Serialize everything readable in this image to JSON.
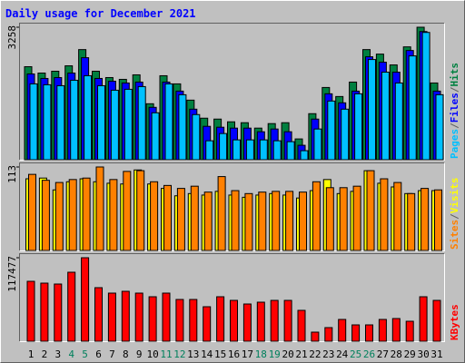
{
  "legend_separator": "/",
  "chart_data": [
    {
      "type": "bar",
      "title": "Daily usage for December 2021",
      "ylim": [
        0,
        3258
      ],
      "yticks": [
        3258
      ],
      "series": [
        {
          "name": "Hits",
          "color": "#008040",
          "values": [
            2287,
            2131,
            2176,
            2309,
            2708,
            2176,
            2020,
            1976,
            2087,
            1376,
            2065,
            1865,
            1465,
            1021,
            999,
            932,
            910,
            777,
            888,
            910,
            511,
            1132,
            1776,
            1554,
            1909,
            2708,
            2597,
            2331,
            2775,
            3258,
            1887
          ]
        },
        {
          "name": "Files",
          "color": "#0000ff",
          "values": [
            2109,
            1998,
            2020,
            2131,
            2509,
            1998,
            1931,
            1887,
            1909,
            1288,
            1909,
            1687,
            1243,
            821,
            799,
            777,
            777,
            688,
            755,
            688,
            355,
            999,
            1621,
            1399,
            1687,
            2531,
            2398,
            2153,
            2686,
            3152,
            1687
          ]
        },
        {
          "name": "Pages",
          "color": "#00c0ff",
          "values": [
            1865,
            1843,
            1820,
            1954,
            2065,
            1820,
            1709,
            1732,
            1798,
            1154,
            1865,
            1598,
            1110,
            466,
            644,
            488,
            488,
            488,
            466,
            444,
            222,
            755,
            1443,
            1243,
            1621,
            2464,
            2153,
            1887,
            2553,
            3130,
            1598
          ]
        }
      ]
    },
    {
      "type": "bar",
      "ylim": [
        0,
        113
      ],
      "yticks": [
        113
      ],
      "series": [
        {
          "name": "Visits",
          "color": "#ffff00",
          "values": [
            97,
            98,
            82,
            93,
            97,
            93,
            91,
            90,
            109,
            90,
            84,
            74,
            77,
            75,
            80,
            75,
            72,
            75,
            77,
            75,
            71,
            81,
            96,
            77,
            80,
            108,
            91,
            86,
            77,
            81,
            81
          ]
        },
        {
          "name": "Sites",
          "color": "#ff8000",
          "values": [
            103,
            95,
            92,
            96,
            98,
            113,
            96,
            107,
            108,
            93,
            88,
            84,
            87,
            79,
            100,
            81,
            77,
            79,
            80,
            80,
            79,
            93,
            85,
            85,
            87,
            108,
            97,
            92,
            77,
            84,
            82
          ]
        }
      ]
    },
    {
      "type": "bar",
      "ylim": [
        0,
        117477
      ],
      "yticks": [
        117477
      ],
      "categories": [
        "1",
        "2",
        "3",
        "4",
        "5",
        "6",
        "7",
        "8",
        "9",
        "10",
        "11",
        "12",
        "13",
        "14",
        "15",
        "16",
        "17",
        "18",
        "19",
        "20",
        "21",
        "22",
        "23",
        "24",
        "25",
        "26",
        "27",
        "28",
        "29",
        "30",
        "31"
      ],
      "category_colors": [
        "#000000",
        "#000000",
        "#000000",
        "#00805c",
        "#00805c",
        "#000000",
        "#000000",
        "#000000",
        "#000000",
        "#000000",
        "#00805c",
        "#00805c",
        "#000000",
        "#000000",
        "#000000",
        "#000000",
        "#000000",
        "#00805c",
        "#00805c",
        "#000000",
        "#000000",
        "#000000",
        "#000000",
        "#000000",
        "#00805c",
        "#00805c",
        "#000000",
        "#000000",
        "#000000",
        "#000000",
        "#000000"
      ],
      "series": [
        {
          "name": "KBytes",
          "color": "#ff0000",
          "values": [
            84282,
            81728,
            80451,
            97052,
            117477,
            75343,
            67681,
            70235,
            67681,
            62573,
            67681,
            58742,
            58742,
            48526,
            62573,
            57465,
            52357,
            54911,
            57465,
            57465,
            43418,
            12770,
            19155,
            30648,
            22986,
            22986,
            30648,
            31925,
            28094,
            62573,
            57465
          ]
        }
      ]
    }
  ]
}
